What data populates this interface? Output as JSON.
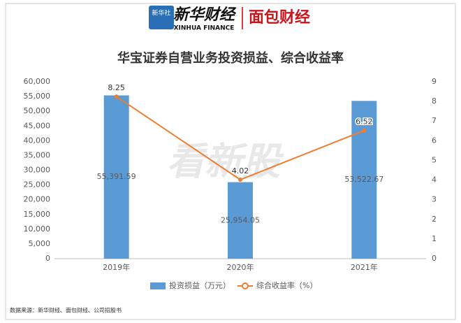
{
  "header": {
    "logo": "新华社",
    "brand": "新华财经",
    "brand_en": "XINHUA FINANCE",
    "partner": "面包财经"
  },
  "chart_data": {
    "type": "bar",
    "title": "华宝证券自营业务投资损益、综合收益率",
    "categories": [
      "2019年",
      "2020年",
      "2021年"
    ],
    "series": [
      {
        "name": "投资损益（万元）",
        "color": "#5b9bd5",
        "values": [
          55391.59,
          25954.05,
          53522.67
        ],
        "value_labels": [
          "55,391.59",
          "25,954.05",
          "53,522.67"
        ]
      },
      {
        "name": "综合收益率（%）",
        "type": "line",
        "axis": "y2",
        "color": "#ed7d31",
        "values": [
          8.25,
          4.02,
          6.52
        ]
      }
    ],
    "ylim": [
      0,
      60000
    ],
    "yticks": [
      0,
      {
        "value": 5000,
        "label": "5,000"
      },
      {
        "value": 10000,
        "label": "10,000"
      },
      {
        "value": 15000,
        "label": "15,000"
      },
      {
        "value": 20000,
        "label": "20,000"
      },
      {
        "value": 25000,
        "label": "25,000"
      },
      {
        "value": 30000,
        "label": "30,000"
      },
      {
        "value": 35000,
        "label": "35,000"
      },
      {
        "value": 40000,
        "label": "40,000"
      },
      {
        "value": 45000,
        "label": "45,000"
      },
      {
        "value": 50000,
        "label": "50,000"
      },
      {
        "value": 55000,
        "label": "55,000"
      },
      {
        "value": 60000,
        "label": "60,000"
      }
    ],
    "y2lim": [
      0,
      9
    ],
    "y2ticks": [
      0,
      1,
      2,
      3,
      4,
      5,
      6,
      7,
      8,
      9
    ],
    "grid": false,
    "legend": "bottom",
    "watermark": "看新股",
    "source": "数据来源：新华财经、面包财经、公司招股书"
  }
}
